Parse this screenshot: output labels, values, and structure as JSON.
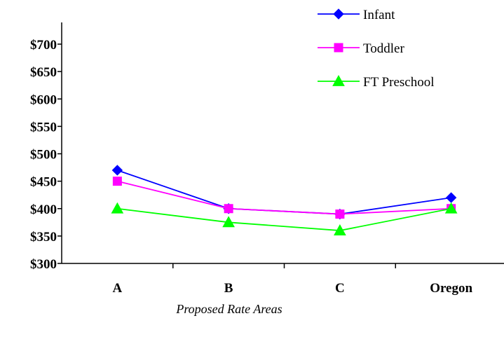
{
  "chart_data": {
    "type": "line",
    "title": "",
    "xlabel": "Proposed Rate Areas",
    "ylabel": "",
    "categories": [
      "A",
      "B",
      "C",
      "Oregon"
    ],
    "ylim": [
      300,
      700
    ],
    "ytick_step": 50,
    "ytick_labels": [
      "$300",
      "$350",
      "$400",
      "$450",
      "$500",
      "$550",
      "$600",
      "$650",
      "$700"
    ],
    "grid": false,
    "legend_position": "top-right",
    "series": [
      {
        "name": "Infant",
        "values": [
          470,
          400,
          390,
          420
        ],
        "color": "#0000FF",
        "marker": "diamond"
      },
      {
        "name": "Toddler",
        "values": [
          450,
          400,
          390,
          400
        ],
        "color": "#FF00FF",
        "marker": "square"
      },
      {
        "name": "FT Preschool",
        "values": [
          400,
          375,
          360,
          400
        ],
        "color": "#00FF00",
        "marker": "triangle"
      }
    ]
  }
}
